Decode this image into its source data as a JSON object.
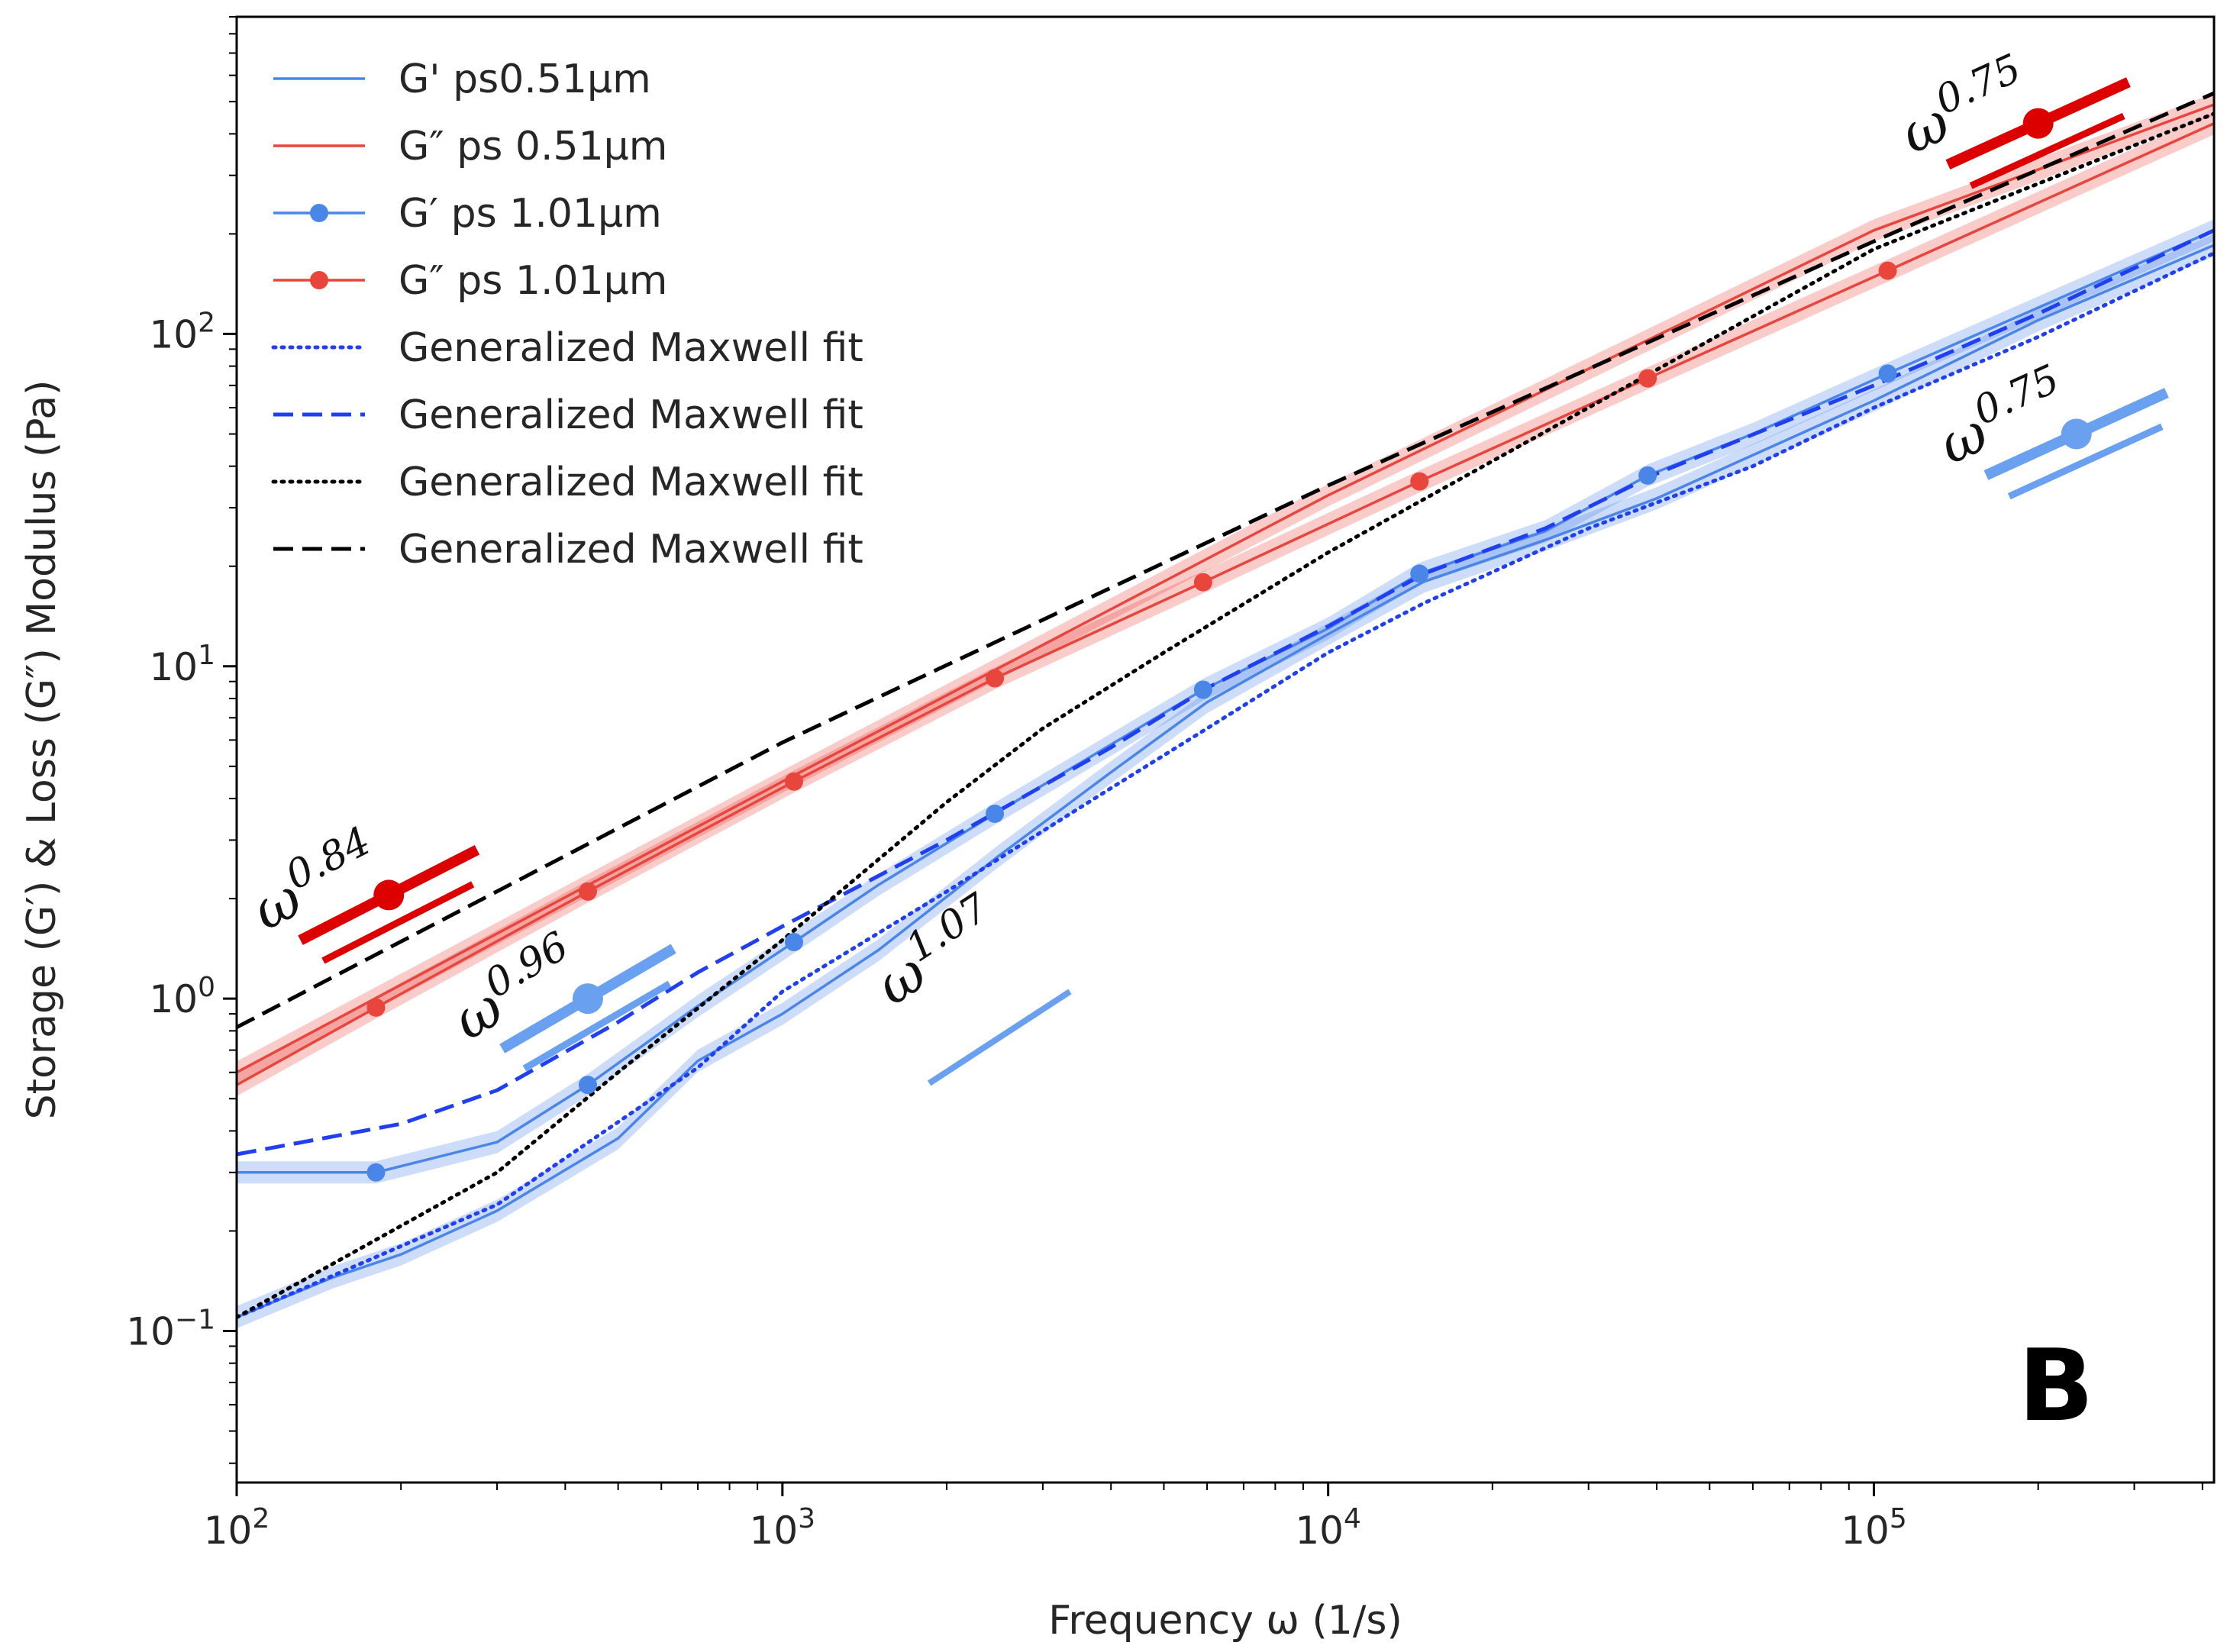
{
  "chart_data": {
    "type": "line",
    "xlabel": "Frequency ω (1/s)",
    "ylabel": "Storage (G′) & Loss (G″) Modulus (Pa)",
    "xscale": "log",
    "yscale": "log",
    "xlim": [
      100,
      420000
    ],
    "ylim": [
      0.035,
      900
    ],
    "x_ticks": [
      {
        "value": 100,
        "base": "10",
        "exp": "2"
      },
      {
        "value": 1000,
        "base": "10",
        "exp": "3"
      },
      {
        "value": 10000,
        "base": "10",
        "exp": "4"
      },
      {
        "value": 100000,
        "base": "10",
        "exp": "5"
      }
    ],
    "y_ticks": [
      {
        "value": 0.1,
        "base": "10",
        "exp": "−1"
      },
      {
        "value": 1,
        "base": "10",
        "exp": "0"
      },
      {
        "value": 10,
        "base": "10",
        "exp": "1"
      },
      {
        "value": 100,
        "base": "10",
        "exp": "2"
      }
    ],
    "panel_label": "B",
    "series": [
      {
        "name": "G' ps0.51μm",
        "color": "#4a86e8",
        "style": "solid",
        "band": true,
        "markers": false,
        "points": [
          [
            100,
            0.11
          ],
          [
            150,
            0.145
          ],
          [
            200,
            0.17
          ],
          [
            300,
            0.23
          ],
          [
            500,
            0.38
          ],
          [
            700,
            0.65
          ],
          [
            1000,
            0.9
          ],
          [
            1500,
            1.4
          ],
          [
            2500,
            2.7
          ],
          [
            4000,
            4.8
          ],
          [
            6000,
            7.8
          ],
          [
            10000,
            12.5
          ],
          [
            15000,
            18
          ],
          [
            25000,
            24
          ],
          [
            40000,
            32
          ],
          [
            100000,
            63
          ],
          [
            200000,
            110
          ],
          [
            420000,
            185
          ]
        ]
      },
      {
        "name": "G″ ps 0.51μm",
        "color": "#e8453c",
        "style": "solid",
        "band": true,
        "markers": false,
        "points": [
          [
            100,
            0.6
          ],
          [
            1000,
            4.5
          ],
          [
            10000,
            32.7
          ],
          [
            100000,
            205
          ],
          [
            420000,
            490
          ]
        ]
      },
      {
        "name": "G′ ps 1.01μm",
        "color": "#4a86e8",
        "style": "solid",
        "band": true,
        "markers": true,
        "points": [
          [
            100,
            0.3
          ],
          [
            180,
            0.3
          ],
          [
            300,
            0.37
          ],
          [
            440,
            0.55
          ],
          [
            700,
            0.95
          ],
          [
            1050,
            1.48
          ],
          [
            1500,
            2.2
          ],
          [
            2450,
            3.6
          ],
          [
            5900,
            8.5
          ],
          [
            10000,
            13
          ],
          [
            14700,
            19
          ],
          [
            25000,
            25.5
          ],
          [
            38500,
            37.5
          ],
          [
            60000,
            50
          ],
          [
            106000,
            76
          ],
          [
            200000,
            120
          ],
          [
            420000,
            205
          ]
        ],
        "marker_points": [
          [
            180,
            0.3
          ],
          [
            440,
            0.55
          ],
          [
            1050,
            1.48
          ],
          [
            2450,
            3.6
          ],
          [
            5900,
            8.5
          ],
          [
            14700,
            19
          ],
          [
            38500,
            37.5
          ],
          [
            106000,
            76
          ]
        ]
      },
      {
        "name": "G″ ps 1.01μm",
        "color": "#e8453c",
        "style": "solid",
        "band": true,
        "markers": true,
        "points": [
          [
            100,
            0.55
          ],
          [
            180,
            0.94
          ],
          [
            440,
            2.1
          ],
          [
            1050,
            4.5
          ],
          [
            2450,
            9.2
          ],
          [
            5900,
            17.9
          ],
          [
            14700,
            36
          ],
          [
            38500,
            73.5
          ],
          [
            106000,
            155
          ],
          [
            420000,
            430
          ]
        ],
        "marker_points": [
          [
            180,
            0.94
          ],
          [
            440,
            2.1
          ],
          [
            1050,
            4.5
          ],
          [
            2450,
            9.2
          ],
          [
            5900,
            17.9
          ],
          [
            14700,
            36
          ],
          [
            38500,
            73.5
          ],
          [
            106000,
            155
          ]
        ]
      },
      {
        "name": "Generalized Maxwell fit",
        "color": "#1f3ff0",
        "style": "dotted",
        "points": [
          [
            100,
            0.11
          ],
          [
            300,
            0.24
          ],
          [
            700,
            0.62
          ],
          [
            1000,
            1.05
          ],
          [
            2000,
            2.1
          ],
          [
            4000,
            4.3
          ],
          [
            6000,
            6.5
          ],
          [
            10000,
            11
          ],
          [
            15000,
            15.5
          ],
          [
            30000,
            26
          ],
          [
            60000,
            40
          ],
          [
            100000,
            60
          ],
          [
            200000,
            98
          ],
          [
            420000,
            175
          ]
        ]
      },
      {
        "name": "Generalized Maxwell fit",
        "color": "#1f3ff0",
        "style": "dashed",
        "points": [
          [
            100,
            0.34
          ],
          [
            200,
            0.42
          ],
          [
            300,
            0.53
          ],
          [
            500,
            0.85
          ],
          [
            700,
            1.2
          ],
          [
            1000,
            1.65
          ],
          [
            2000,
            3.0
          ],
          [
            4000,
            5.7
          ],
          [
            6000,
            8.6
          ],
          [
            10000,
            13.2
          ],
          [
            15000,
            19
          ],
          [
            25000,
            26
          ],
          [
            40000,
            38
          ],
          [
            100000,
            70
          ],
          [
            200000,
            115
          ],
          [
            420000,
            205
          ]
        ]
      },
      {
        "name": "Generalized Maxwell fit",
        "color": "#000000",
        "style": "dotted",
        "points": [
          [
            100,
            0.11
          ],
          [
            300,
            0.3
          ],
          [
            500,
            0.6
          ],
          [
            1000,
            1.5
          ],
          [
            2000,
            3.9
          ],
          [
            3000,
            6.5
          ],
          [
            5000,
            11
          ],
          [
            10000,
            22
          ],
          [
            30000,
            60
          ],
          [
            100000,
            180
          ],
          [
            420000,
            460
          ]
        ]
      },
      {
        "name": "Generalized Maxwell fit",
        "color": "#000000",
        "style": "dashed",
        "points": [
          [
            100,
            0.82
          ],
          [
            1000,
            5.9
          ],
          [
            10000,
            35
          ],
          [
            100000,
            190
          ],
          [
            420000,
            530
          ]
        ]
      }
    ],
    "annotations": [
      {
        "text_base": "ω",
        "text_exp": "0.84",
        "color": "#dd0000",
        "x": 190,
        "y": 2.05,
        "slope": 0.84,
        "decades": 0.42
      },
      {
        "text_base": "ω",
        "text_exp": "0.96",
        "color": "#6aa0f0",
        "x": 440,
        "y": 1.0,
        "slope": 0.96,
        "decades": 0.42
      },
      {
        "text_base": "ω",
        "text_exp": "1.07",
        "color": "#6aa0f0",
        "x": 2500,
        "y": 1.05,
        "slope": 1.07,
        "decades": 0.0
      },
      {
        "text_base": "ω",
        "text_exp": "0.75",
        "color": "#dd0000",
        "x": 200000,
        "y": 430,
        "slope": 0.75,
        "decades": 0.45
      },
      {
        "text_base": "ω",
        "text_exp": "0.75",
        "color": "#6aa0f0",
        "x": 235000,
        "y": 50,
        "slope": 0.75,
        "decades": 0.45
      }
    ]
  }
}
